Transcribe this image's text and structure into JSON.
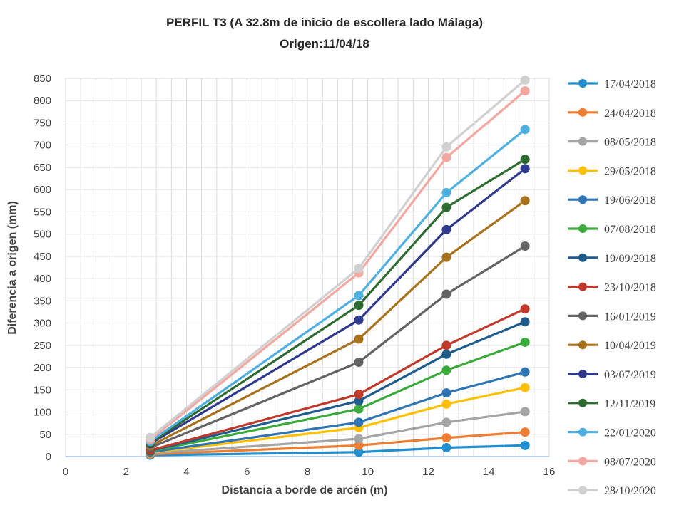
{
  "chart_data": {
    "type": "line",
    "title": "PERFIL T3 (A 32.8m de inicio de escollera lado Málaga)",
    "subtitle": "Origen:11/04/18",
    "xlabel": "Distancia a borde de arcén (m)",
    "ylabel": "Diferencia a origen (mm)",
    "xlim": [
      0,
      16
    ],
    "ylim": [
      0,
      850
    ],
    "xticks": [
      0,
      2,
      4,
      6,
      8,
      10,
      12,
      14,
      16
    ],
    "yticks": [
      0,
      50,
      100,
      150,
      200,
      250,
      300,
      350,
      400,
      450,
      500,
      550,
      600,
      650,
      700,
      750,
      800,
      850
    ],
    "grid": true,
    "legend_position": "right",
    "x": [
      2.8,
      9.7,
      12.6,
      15.2
    ],
    "series": [
      {
        "name": "17/04/2018",
        "color": "#1f8fd0",
        "values": [
          3,
          10,
          20,
          25
        ]
      },
      {
        "name": "24/04/2018",
        "color": "#ed7d31",
        "values": [
          5,
          25,
          42,
          55
        ]
      },
      {
        "name": "08/05/2018",
        "color": "#a5a5a5",
        "values": [
          7,
          40,
          77,
          101
        ]
      },
      {
        "name": "29/05/2018",
        "color": "#ffc000",
        "values": [
          9,
          65,
          118,
          155
        ]
      },
      {
        "name": "19/06/2018",
        "color": "#2e75b6",
        "values": [
          10,
          77,
          143,
          190
        ]
      },
      {
        "name": "07/08/2018",
        "color": "#3aab3a",
        "values": [
          12,
          107,
          194,
          257
        ]
      },
      {
        "name": "19/09/2018",
        "color": "#1f5c8c",
        "values": [
          13,
          125,
          230,
          303
        ]
      },
      {
        "name": "23/10/2018",
        "color": "#c0392b",
        "values": [
          14,
          140,
          250,
          332
        ]
      },
      {
        "name": "16/01/2019",
        "color": "#636363",
        "values": [
          20,
          212,
          365,
          473
        ]
      },
      {
        "name": "10/04/2019",
        "color": "#a8721c",
        "values": [
          24,
          264,
          448,
          575
        ]
      },
      {
        "name": "03/07/2019",
        "color": "#2f3a8f",
        "values": [
          29,
          307,
          510,
          647
        ]
      },
      {
        "name": "12/11/2019",
        "color": "#2e6b30",
        "values": [
          31,
          340,
          560,
          668
        ]
      },
      {
        "name": "22/01/2020",
        "color": "#4eb0e0",
        "values": [
          34,
          362,
          593,
          735
        ]
      },
      {
        "name": "08/07/2020",
        "color": "#f4a7a0",
        "values": [
          38,
          413,
          672,
          822
        ]
      },
      {
        "name": "28/10/2020",
        "color": "#d0d0d0",
        "values": [
          43,
          423,
          696,
          846
        ]
      }
    ]
  }
}
